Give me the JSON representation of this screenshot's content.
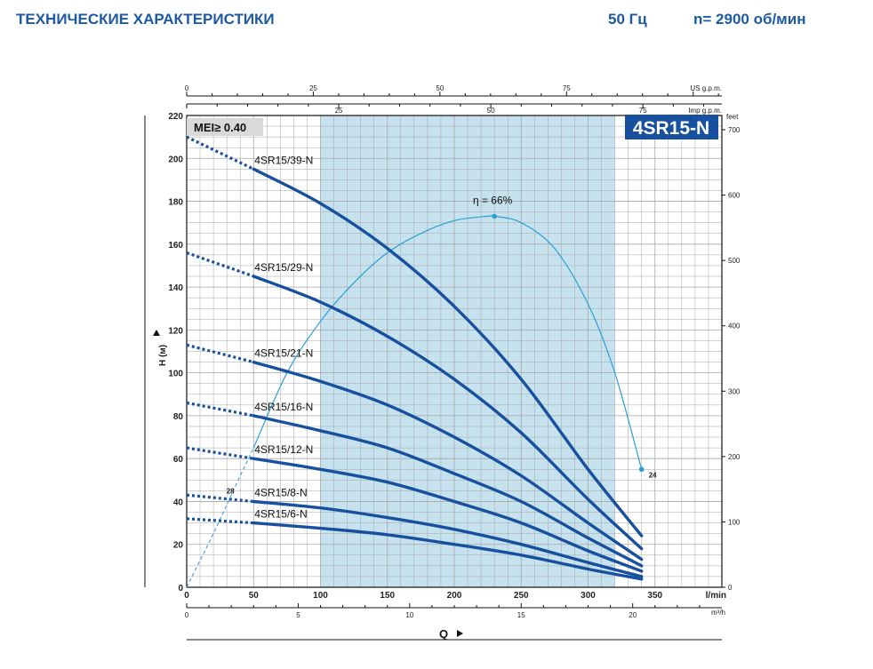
{
  "header": {
    "title": "ТЕХНИЧЕСКИЕ ХАРАКТЕРИСТИКИ",
    "frequency": "50 Гц",
    "speed": "n= 2900 об/мин"
  },
  "colors": {
    "curve": "#17509e",
    "efficiency": "#2a9fd6",
    "band": "#c6e2ef",
    "grid": "#a6a6a6",
    "model_badge_bg": "#17509e",
    "mei_bg": "#d9d9d9"
  },
  "chart_data": {
    "type": "line",
    "title": "4SR15-N",
    "mei_label": "MEI≥ 0.40",
    "xlabel": "Q",
    "ylabel": "H (м)",
    "x_unit": "l/min",
    "x_lim": [
      0,
      400
    ],
    "y_lim": [
      0,
      220
    ],
    "x_ticks": [
      0,
      50,
      100,
      150,
      200,
      250,
      300,
      350
    ],
    "y_ticks": [
      0,
      20,
      40,
      60,
      80,
      100,
      120,
      140,
      160,
      180,
      200,
      220
    ],
    "y2_unit": "feet",
    "y2_ticks": [
      0,
      100,
      200,
      300,
      400,
      500,
      600,
      700
    ],
    "x_m3h_unit": "m³/h",
    "x_m3h_ticks": [
      0,
      5,
      10,
      15,
      20
    ],
    "x_usgpm_unit": "US g.p.m.",
    "x_usgpm_ticks": [
      0,
      25,
      50,
      75
    ],
    "x_impgpm_unit": "Imp g.p.m.",
    "x_impgpm_ticks": [
      25,
      50,
      75
    ],
    "recommended_range": [
      100,
      320
    ],
    "series": [
      {
        "name": "4SR15/39-N",
        "dotted": {
          "x": [
            0,
            50
          ],
          "y": [
            210,
            195
          ]
        },
        "solid": {
          "x": [
            50,
            100,
            150,
            200,
            250,
            300,
            340
          ],
          "y": [
            195,
            179,
            158,
            131,
            97,
            55,
            24
          ]
        }
      },
      {
        "name": "4SR15/29-N",
        "dotted": {
          "x": [
            0,
            50
          ],
          "y": [
            156,
            145
          ]
        },
        "solid": {
          "x": [
            50,
            100,
            150,
            200,
            250,
            300,
            340
          ],
          "y": [
            145,
            133,
            117,
            97,
            72,
            41,
            18
          ]
        }
      },
      {
        "name": "4SR15/21-N",
        "dotted": {
          "x": [
            0,
            50
          ],
          "y": [
            113,
            105
          ]
        },
        "solid": {
          "x": [
            50,
            100,
            150,
            200,
            250,
            300,
            340
          ],
          "y": [
            105,
            96,
            85,
            70,
            52,
            30,
            13
          ]
        }
      },
      {
        "name": "4SR15/16-N",
        "dotted": {
          "x": [
            0,
            50
          ],
          "y": [
            86,
            80
          ]
        },
        "solid": {
          "x": [
            50,
            100,
            150,
            200,
            250,
            300,
            340
          ],
          "y": [
            80,
            73,
            65,
            53,
            40,
            23,
            10
          ]
        }
      },
      {
        "name": "4SR15/12-N",
        "dotted": {
          "x": [
            0,
            50
          ],
          "y": [
            65,
            60
          ]
        },
        "solid": {
          "x": [
            50,
            100,
            150,
            200,
            250,
            300,
            340
          ],
          "y": [
            60,
            55,
            49,
            40,
            30,
            17,
            7.5
          ]
        }
      },
      {
        "name": "4SR15/8-N",
        "dotted": {
          "x": [
            0,
            50
          ],
          "y": [
            43,
            40
          ]
        },
        "solid": {
          "x": [
            50,
            100,
            150,
            200,
            250,
            300,
            340
          ],
          "y": [
            40,
            37,
            32.5,
            27,
            20,
            11.5,
            5
          ]
        }
      },
      {
        "name": "4SR15/6-N",
        "dotted": {
          "x": [
            0,
            50
          ],
          "y": [
            32,
            30
          ]
        },
        "solid": {
          "x": [
            50,
            100,
            150,
            200,
            250,
            300,
            340
          ],
          "y": [
            30,
            27.5,
            24.5,
            20,
            15,
            8.5,
            3.8
          ]
        }
      }
    ],
    "efficiency_curve": {
      "label": "η = 66%",
      "dashed": {
        "x": [
          0,
          20,
          40,
          50
        ],
        "y": [
          0,
          25,
          52,
          65
        ]
      },
      "solid": {
        "x": [
          50,
          75,
          100,
          125,
          150,
          175,
          200,
          225,
          230,
          250,
          275,
          300,
          320,
          340
        ],
        "y": [
          65,
          100,
          124,
          142,
          156,
          165,
          171,
          173,
          173,
          170,
          158,
          132,
          100,
          55
        ]
      },
      "peak": {
        "x": 230,
        "y": 173
      },
      "start_label": "28",
      "end_label": "24",
      "end_point": {
        "x": 340,
        "y": 55
      }
    }
  }
}
